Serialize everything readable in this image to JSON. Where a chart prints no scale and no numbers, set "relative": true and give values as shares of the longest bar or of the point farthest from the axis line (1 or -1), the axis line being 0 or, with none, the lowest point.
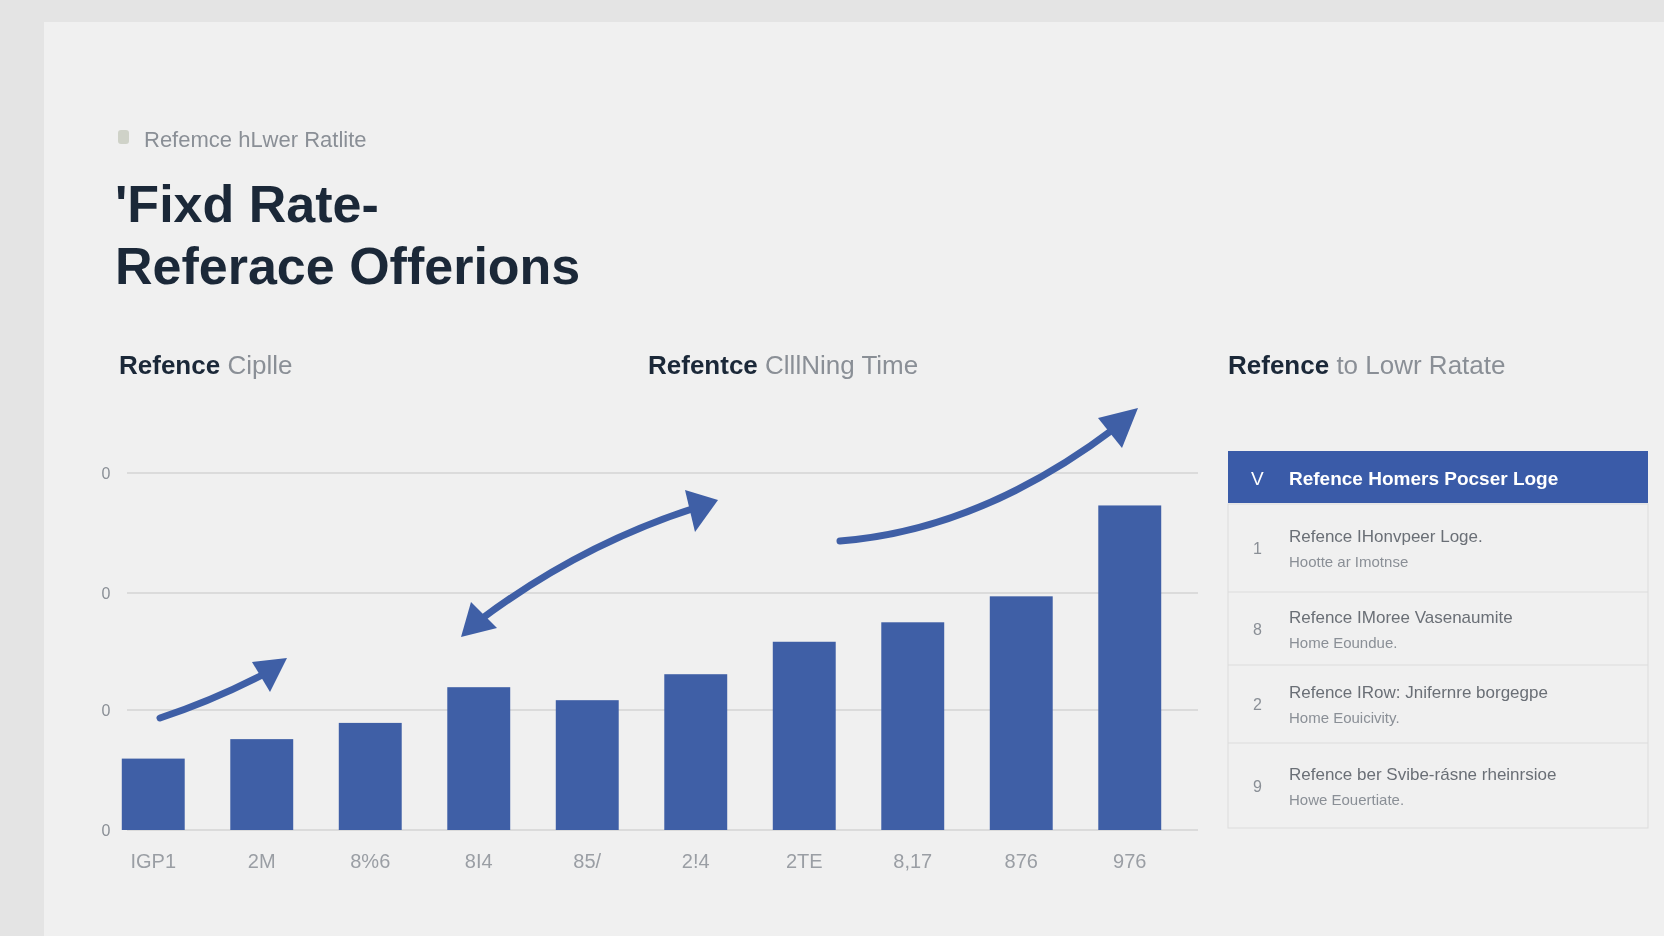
{
  "chart_data": [
    {
      "type": "bar",
      "subtitle": "Refemce hLwer Ratlite",
      "title": "'Fixd Rate-\nReferace Offerions",
      "annotations": [
        "Refence Ciplle",
        "Refentce ClllNing Time",
        "Refence to Lowr Ratate",
        "0",
        "0",
        "0",
        "0"
      ],
      "categories": [
        "IGP1",
        "2M",
        "8%6",
        "8I4",
        "85/",
        "2!4",
        "2TE",
        "8,17",
        "876",
        "976"
      ],
      "values": [
        0.22,
        0.28,
        0.33,
        0.44,
        0.4,
        0.48,
        0.58,
        0.64,
        0.72,
        1.0
      ],
      "color": "#3f5fa6",
      "relative": true,
      "ref_lines": [
        {
          "axis": "y",
          "value": 0,
          "color": "#d4d4d4"
        },
        {
          "axis": "y",
          "value": 0.37,
          "color": "#d4d4d4"
        },
        {
          "axis": "y",
          "value": 0.73,
          "color": "#d4d4d4"
        },
        {
          "axis": "y",
          "value": 1.1,
          "color": "#d4d4d4"
        }
      ]
    },
    {
      "type": "other",
      "title": "Refence Homers Pocser Loge",
      "annotations": [
        "V",
        "1",
        "Refence IHonvpeer Loge.\nHootte ar Imotnse",
        "8",
        "Refence IMoree Vasenaumite\nHome Eoundue.",
        "2",
        "Refence IRow: Jnifernre borgegpe\nHome Eouicivity.",
        "9",
        "Refence ber Svibe-rásne rheinrsioe\nHowe Eouertiate."
      ]
    }
  ]
}
